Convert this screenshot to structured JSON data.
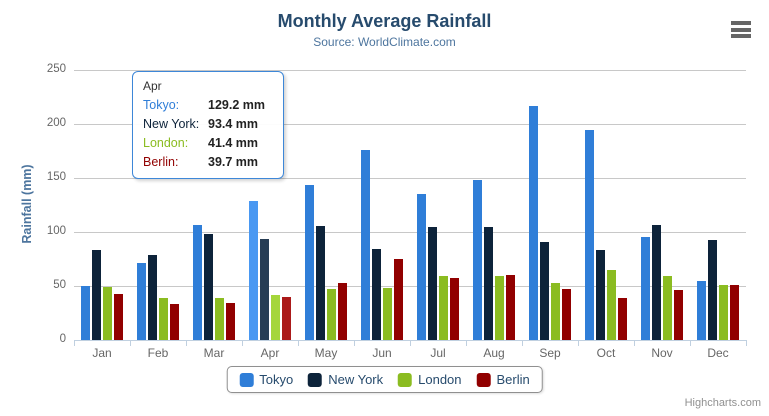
{
  "header": {
    "title": "Monthly Average Rainfall",
    "subtitle": "Source: WorldClimate.com"
  },
  "credits": "Highcharts.com",
  "colors": {
    "title": "#274b6d",
    "subtitle": "#4d759e",
    "axis_label": "#666666",
    "axis_line": "#c0d0e0",
    "gridline": "#c8c8c8",
    "tooltip_border": "#3d87d8",
    "legend_border": "#909090"
  },
  "tooltip": {
    "header": "Apr",
    "rows": [
      {
        "label": "Tokyo:",
        "value": "129.2 mm",
        "color": "#2f7ed8"
      },
      {
        "label": "New York:",
        "value": "93.4 mm",
        "color": "#0d233a"
      },
      {
        "label": "London:",
        "value": "41.4 mm",
        "color": "#8bbc21"
      },
      {
        "label": "Berlin:",
        "value": "39.7 mm",
        "color": "#910000"
      }
    ]
  },
  "legend": {
    "items": [
      {
        "label": "Tokyo",
        "color": "#2f7ed8"
      },
      {
        "label": "New York",
        "color": "#0d233a"
      },
      {
        "label": "London",
        "color": "#8bbc21"
      },
      {
        "label": "Berlin",
        "color": "#910000"
      }
    ]
  },
  "chart_data": {
    "type": "bar",
    "title": "Monthly Average Rainfall",
    "subtitle": "Source: WorldClimate.com",
    "xlabel": "",
    "ylabel": "Rainfall (mm)",
    "ylim": [
      0,
      250
    ],
    "yticks": [
      0,
      50,
      100,
      150,
      200,
      250
    ],
    "grid": true,
    "legend_position": "bottom",
    "highlighted_category": "Apr",
    "categories": [
      "Jan",
      "Feb",
      "Mar",
      "Apr",
      "May",
      "Jun",
      "Jul",
      "Aug",
      "Sep",
      "Oct",
      "Nov",
      "Dec"
    ],
    "series": [
      {
        "name": "Tokyo",
        "color": "#2f7ed8",
        "values": [
          49.9,
          71.5,
          106.4,
          129.2,
          144.0,
          176.0,
          135.6,
          148.5,
          216.4,
          194.1,
          95.6,
          54.4
        ]
      },
      {
        "name": "New York",
        "color": "#0d233a",
        "values": [
          83.6,
          78.8,
          98.5,
          93.4,
          106.0,
          84.5,
          105.0,
          104.3,
          91.2,
          83.5,
          106.6,
          92.3
        ]
      },
      {
        "name": "London",
        "color": "#8bbc21",
        "values": [
          48.9,
          38.8,
          39.3,
          41.4,
          47.0,
          48.3,
          59.0,
          59.6,
          52.4,
          65.2,
          59.3,
          51.2
        ]
      },
      {
        "name": "Berlin",
        "color": "#910000",
        "values": [
          42.4,
          33.2,
          34.5,
          39.7,
          52.6,
          75.5,
          57.4,
          60.4,
          47.6,
          39.1,
          46.8,
          51.1
        ]
      }
    ]
  }
}
